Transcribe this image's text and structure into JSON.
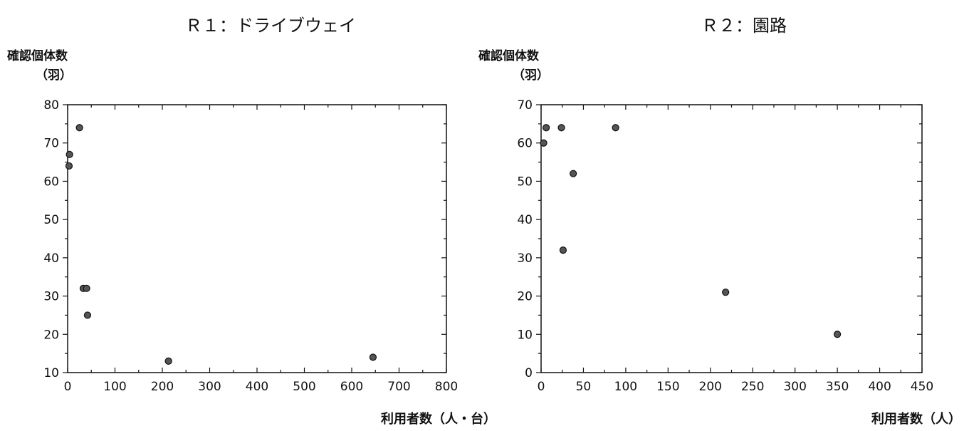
{
  "chart_data": [
    {
      "type": "scatter",
      "title": "Ｒ１：ドライブウェイ",
      "ylabel_line1": "確認個体数",
      "ylabel_line2": "（羽）",
      "xlabel": "利用者数（人・台）",
      "xlim": [
        0,
        800
      ],
      "ylim": [
        10,
        80
      ],
      "xticks": [
        0,
        100,
        200,
        300,
        400,
        500,
        600,
        700,
        800
      ],
      "yticks": [
        10,
        20,
        30,
        40,
        50,
        60,
        70,
        80
      ],
      "x_minor_step": 50,
      "y_minor_step": 5,
      "grid": false,
      "points": [
        {
          "x": 4,
          "y": 67
        },
        {
          "x": 3,
          "y": 64
        },
        {
          "x": 25,
          "y": 74
        },
        {
          "x": 33,
          "y": 32
        },
        {
          "x": 40,
          "y": 32
        },
        {
          "x": 42,
          "y": 25
        },
        {
          "x": 213,
          "y": 13
        },
        {
          "x": 645,
          "y": 14
        }
      ]
    },
    {
      "type": "scatter",
      "title": "Ｒ２：園路",
      "ylabel_line1": "確認個体数",
      "ylabel_line2": "（羽）",
      "xlabel": "利用者数（人）",
      "xlim": [
        0,
        450
      ],
      "ylim": [
        0,
        70
      ],
      "xticks": [
        0,
        50,
        100,
        150,
        200,
        250,
        300,
        350,
        400,
        450
      ],
      "yticks": [
        0,
        10,
        20,
        30,
        40,
        50,
        60,
        70
      ],
      "x_minor_step": 25,
      "y_minor_step": 5,
      "grid": false,
      "points": [
        {
          "x": 3,
          "y": 60
        },
        {
          "x": 6,
          "y": 64
        },
        {
          "x": 24,
          "y": 64
        },
        {
          "x": 26,
          "y": 32
        },
        {
          "x": 38,
          "y": 52
        },
        {
          "x": 88,
          "y": 64
        },
        {
          "x": 218,
          "y": 21
        },
        {
          "x": 350,
          "y": 10
        }
      ]
    }
  ]
}
